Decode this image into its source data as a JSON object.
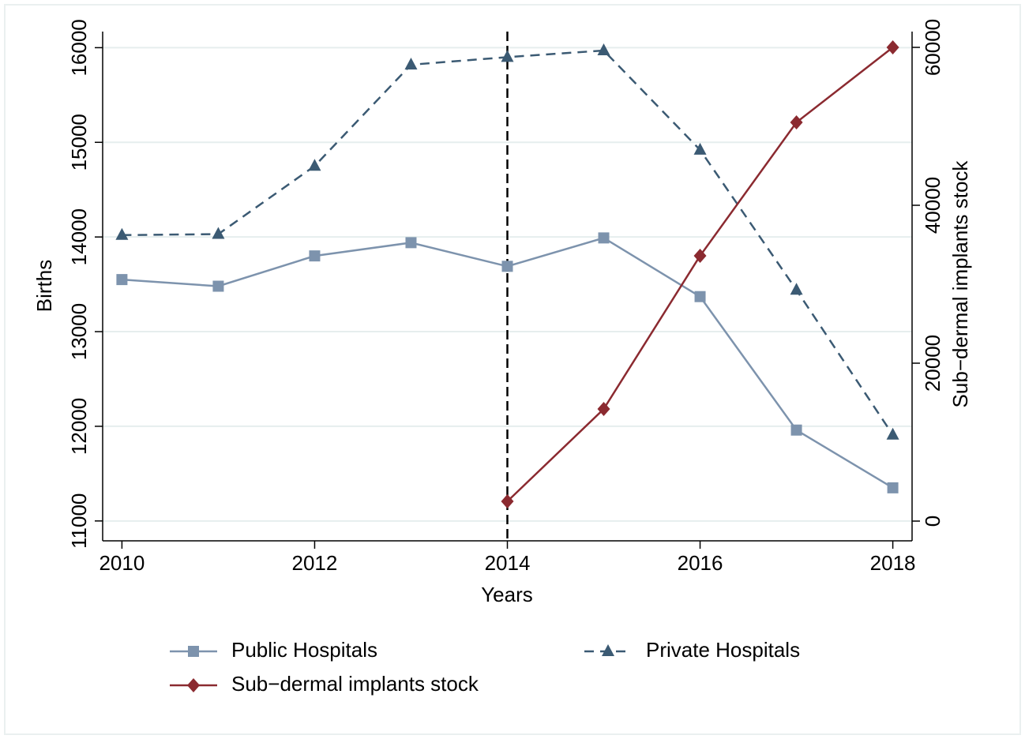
{
  "chart_data": {
    "type": "line",
    "x": [
      2010,
      2011,
      2012,
      2013,
      2014,
      2015,
      2016,
      2017,
      2018
    ],
    "xlabel": "Years",
    "ylabel": "Births",
    "y2label": "Sub−dermal implants stock",
    "xlim": [
      2009.8,
      2018.2
    ],
    "xticks": [
      2010,
      2012,
      2014,
      2016,
      2018
    ],
    "ylim": [
      10790,
      16170
    ],
    "yticks": [
      11000,
      12000,
      13000,
      14000,
      15000,
      16000
    ],
    "y2lim": [
      -2500,
      62000
    ],
    "y2ticks": [
      0,
      20000,
      40000,
      60000
    ],
    "grid": true,
    "vline": 2014,
    "series": [
      {
        "name": "Public Hospitals",
        "color": "#7d93ad",
        "marker": "square",
        "dash": false,
        "values": [
          13550,
          13480,
          13800,
          13940,
          13690,
          13990,
          13370,
          11960,
          11350
        ]
      },
      {
        "name": "Private Hospitals",
        "color": "#3b5a73",
        "marker": "triangle",
        "dash": true,
        "values": [
          14020,
          14030,
          14750,
          15820,
          15900,
          15970,
          14920,
          13440,
          11910
        ]
      },
      {
        "name": "Sub−dermal implants stock",
        "color": "#8b2a30",
        "marker": "diamond",
        "dash": false,
        "axis": "y2",
        "values": [
          null,
          null,
          null,
          null,
          2500,
          14200,
          33600,
          50500,
          60000
        ]
      }
    ]
  }
}
